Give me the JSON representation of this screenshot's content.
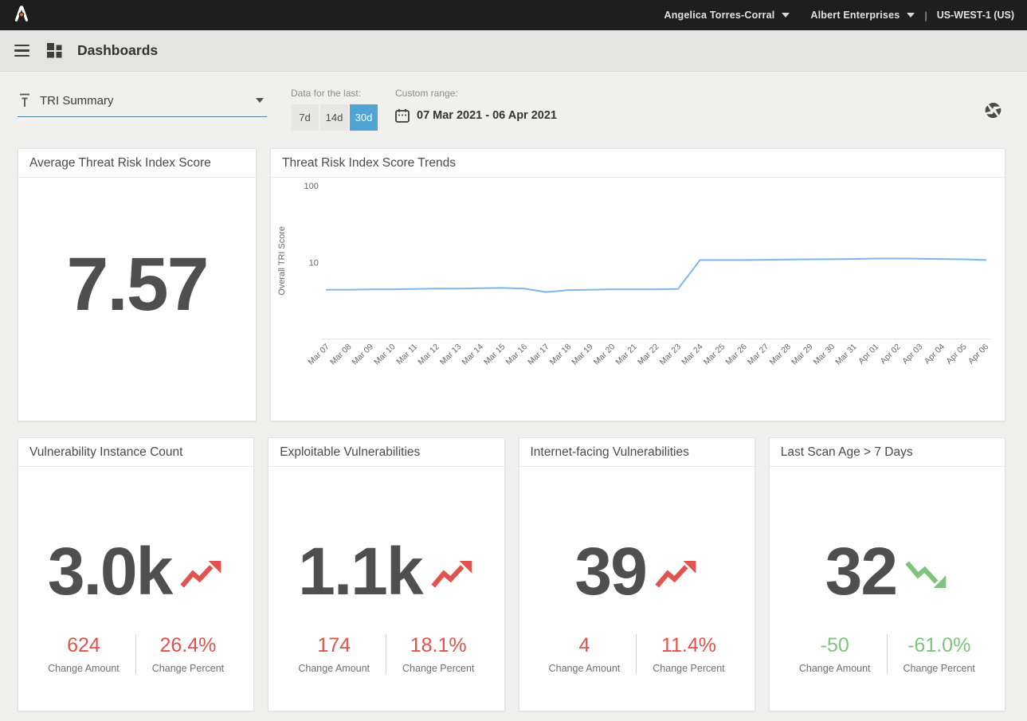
{
  "colors": {
    "red": "#e0534e",
    "green": "#7fc37e",
    "accent_blue": "#4fa3d5",
    "underline_blue": "#4c7fb0",
    "line_blue": "#7cb5ec",
    "topbar_bg": "#1e1e1e",
    "logo_orange": "#e8692c"
  },
  "topbar": {
    "user_name": "Angelica Torres-Corral",
    "account_name": "Albert Enterprises",
    "divider": "|",
    "region": "US-WEST-1 (US)"
  },
  "header": {
    "title": "Dashboards"
  },
  "filters": {
    "dashboard_filter_value": "TRI Summary",
    "data_last_label": "Data for the last:",
    "ranges": [
      {
        "label": "7d",
        "selected": false
      },
      {
        "label": "14d",
        "selected": false
      },
      {
        "label": "30d",
        "selected": true
      }
    ],
    "custom_range_label": "Custom range:",
    "custom_range_value": "07 Mar 2021 - 06 Apr 2021"
  },
  "score_card": {
    "title": "Average Threat Risk Index Score",
    "value": "7.57"
  },
  "chart_card": {
    "title": "Threat Risk Index Score Trends"
  },
  "chart_data": {
    "type": "line",
    "title": "Threat Risk Index Score Trends",
    "xlabel": "",
    "ylabel": "Overall TRI Score",
    "y_scale": "log",
    "y_ticks": [
      100,
      10
    ],
    "ylim": [
      1,
      100
    ],
    "grid": false,
    "legend": false,
    "line_color": "#7cb5ec",
    "x": [
      "Mar 07",
      "Mar 08",
      "Mar 09",
      "Mar 10",
      "Mar 11",
      "Mar 12",
      "Mar 13",
      "Mar 14",
      "Mar 15",
      "Mar 16",
      "Mar 17",
      "Mar 18",
      "Mar 19",
      "Mar 20",
      "Mar 21",
      "Mar 22",
      "Mar 23",
      "Mar 24",
      "Mar 25",
      "Mar 26",
      "Mar 27",
      "Mar 28",
      "Mar 29",
      "Mar 30",
      "Mar 31",
      "Apr 01",
      "Apr 02",
      "Apr 03",
      "Apr 04",
      "Apr 05",
      "Apr 06"
    ],
    "values": [
      4.4,
      4.4,
      4.45,
      4.45,
      4.5,
      4.55,
      4.55,
      4.6,
      4.65,
      4.55,
      4.1,
      4.35,
      4.4,
      4.45,
      4.45,
      4.45,
      4.5,
      10.7,
      10.7,
      10.75,
      10.8,
      10.9,
      10.95,
      11.0,
      11.05,
      11.2,
      11.2,
      11.15,
      11.05,
      10.95,
      10.7
    ]
  },
  "kpis": [
    {
      "title": "Vulnerability Instance Count",
      "value": "3.0k",
      "trend": "up",
      "change_amount": "624",
      "change_amount_label": "Change Amount",
      "change_percent": "26.4%",
      "change_percent_label": "Change Percent"
    },
    {
      "title": "Exploitable Vulnerabilities",
      "value": "1.1k",
      "trend": "up",
      "change_amount": "174",
      "change_amount_label": "Change Amount",
      "change_percent": "18.1%",
      "change_percent_label": "Change Percent"
    },
    {
      "title": "Internet-facing Vulnerabilities",
      "value": "39",
      "trend": "up",
      "change_amount": "4",
      "change_amount_label": "Change Amount",
      "change_percent": "11.4%",
      "change_percent_label": "Change Percent"
    },
    {
      "title": "Last Scan Age > 7 Days",
      "value": "32",
      "trend": "down",
      "change_amount": "-50",
      "change_amount_label": "Change Amount",
      "change_percent": "-61.0%",
      "change_percent_label": "Change Percent"
    }
  ]
}
